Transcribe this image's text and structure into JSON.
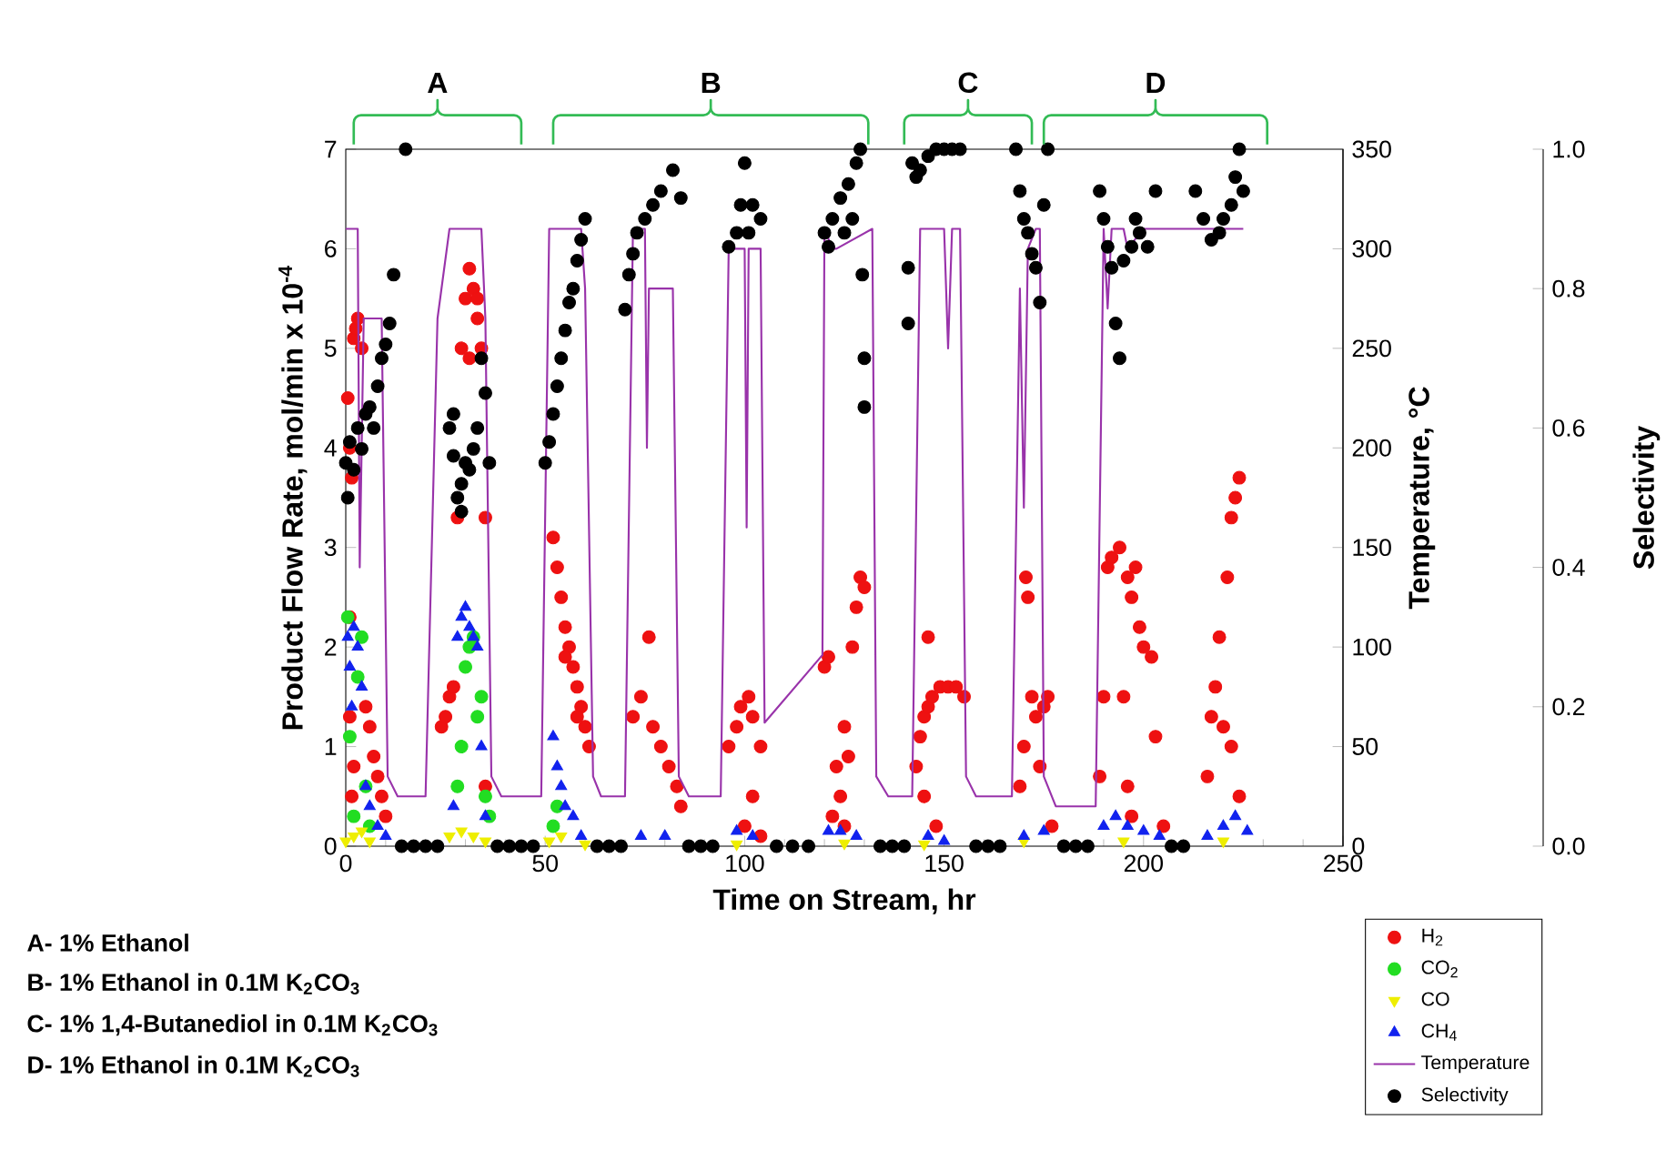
{
  "chart_data": {
    "type": "scatter",
    "xlabel": "Time on Stream, hr",
    "ylabel": "Product Flow Rate, mol/min x 10$^{-4}$",
    "y2label": "Temperature, °C",
    "y3label": "Selectivity",
    "xlim": [
      0,
      250
    ],
    "xticks": [
      0,
      50,
      100,
      150,
      200,
      250
    ],
    "ylim": [
      0,
      7
    ],
    "yticks": [
      0,
      1,
      2,
      3,
      4,
      5,
      6,
      7
    ],
    "y2lim": [
      0,
      350
    ],
    "y2ticks": [
      0,
      50,
      100,
      150,
      200,
      250,
      300,
      350
    ],
    "y3lim": [
      0,
      1
    ],
    "y3ticks": [
      {
        "value": 0,
        "label": "0.0"
      },
      0.2,
      0.4,
      0.6,
      0.8,
      {
        "value": 1,
        "label": "1.0"
      }
    ],
    "legend": "bottom right",
    "grid": false,
    "annotations": [
      "A",
      "B",
      "C",
      "D",
      "A- 1% Ethanol",
      "B- 1% Ethanol in 0.1M K$_{2}$CO$_{3}$",
      "C- 1% 1,4-Butanediol in 0.1M K$_{2}$CO$_{3}$",
      "D- 1% Ethanol in 0.1M K$_{2}$CO$_{3}$"
    ],
    "series": [
      {
        "name": "H$_{2}$",
        "marker": "circle",
        "color": "#ee1111",
        "x": [
          0.5,
          1,
          1.5,
          2,
          2.5,
          3,
          4,
          1,
          1.5,
          5,
          6,
          7,
          8,
          9,
          10,
          1,
          2,
          24,
          25,
          26,
          27,
          28,
          29,
          30,
          31,
          32,
          33,
          34,
          31,
          33,
          35,
          35,
          52,
          53,
          54,
          55,
          56,
          57,
          58,
          59,
          60,
          61,
          55,
          58,
          72,
          74,
          76,
          77,
          79,
          81,
          83,
          84,
          96,
          98,
          99,
          101,
          102,
          104,
          100,
          102,
          104,
          120,
          121,
          122,
          123,
          124,
          125,
          126,
          127,
          128,
          129,
          130,
          125,
          143,
          144,
          145,
          146,
          147,
          149,
          151,
          153,
          155,
          146,
          145,
          148,
          169,
          170,
          170.5,
          171,
          172,
          173,
          175,
          176,
          174,
          177,
          189,
          190,
          191,
          192,
          194,
          196,
          197,
          199,
          200,
          202,
          203,
          195,
          196,
          197,
          205,
          198,
          216,
          217,
          218,
          219,
          220,
          221,
          222,
          223,
          224,
          222,
          224
        ],
        "values": [
          4.5,
          4.0,
          3.7,
          5.1,
          5.2,
          5.3,
          5.0,
          1.3,
          0.5,
          1.4,
          1.2,
          0.9,
          0.7,
          0.5,
          0.3,
          2.3,
          0.8,
          1.2,
          1.3,
          1.5,
          1.6,
          3.3,
          5.0,
          5.5,
          5.8,
          5.6,
          5.3,
          5.0,
          4.9,
          5.5,
          0.6,
          3.3,
          3.1,
          2.8,
          2.5,
          2.2,
          2.0,
          1.8,
          1.6,
          1.4,
          1.2,
          1.0,
          1.9,
          1.3,
          1.3,
          1.5,
          2.1,
          1.2,
          1.0,
          0.8,
          0.6,
          0.4,
          1.0,
          1.2,
          1.4,
          1.5,
          1.3,
          1.0,
          0.2,
          0.5,
          0.1,
          1.8,
          1.9,
          0.3,
          0.8,
          0.5,
          0.2,
          0.9,
          2.0,
          2.4,
          2.7,
          2.6,
          1.2,
          0.8,
          1.1,
          1.3,
          1.4,
          1.5,
          1.6,
          1.6,
          1.6,
          1.5,
          2.1,
          0.5,
          0.2,
          0.6,
          1.0,
          2.7,
          2.5,
          1.5,
          1.3,
          1.4,
          1.5,
          0.8,
          0.2,
          0.7,
          1.5,
          2.8,
          2.9,
          3.0,
          2.7,
          2.5,
          2.2,
          2.0,
          1.9,
          1.1,
          1.5,
          0.6,
          0.3,
          0.2,
          2.8,
          0.7,
          1.3,
          1.6,
          2.1,
          1.2,
          2.7,
          3.3,
          3.5,
          3.7,
          1.0,
          0.5
        ]
      },
      {
        "name": "CO$_{2}$",
        "marker": "circle",
        "color": "#22dd22",
        "x": [
          0.5,
          1,
          2,
          3,
          4,
          5,
          6,
          28,
          29,
          30,
          31,
          32,
          33,
          34,
          35,
          36,
          52,
          53
        ],
        "values": [
          2.3,
          1.1,
          0.3,
          1.7,
          2.1,
          0.6,
          0.2,
          0.6,
          1.0,
          1.8,
          2.0,
          2.1,
          1.3,
          1.5,
          0.5,
          0.3,
          0.2,
          0.4
        ]
      },
      {
        "name": "CO",
        "marker": "triangle-down",
        "color": "#eeee00",
        "x": [
          0,
          2,
          4,
          6,
          26,
          29,
          32,
          35,
          51,
          54,
          60,
          98,
          125,
          145,
          170,
          195,
          220
        ],
        "values": [
          0.05,
          0.1,
          0.15,
          0.05,
          0.1,
          0.15,
          0.1,
          0.05,
          0.05,
          0.1,
          0.02,
          0.02,
          0.03,
          0.02,
          0.05,
          0.05,
          0.05
        ]
      },
      {
        "name": "CH$_{4}$",
        "marker": "triangle",
        "color": "#1122ee",
        "x": [
          0.5,
          1,
          1.5,
          2,
          3,
          4,
          5,
          6,
          8,
          10,
          28,
          29,
          30,
          31,
          32,
          33,
          34,
          35,
          27,
          52,
          53,
          54,
          55,
          57,
          59,
          74,
          80,
          98,
          102,
          121,
          124,
          128,
          140,
          146,
          150,
          160,
          170,
          175,
          190,
          193,
          196,
          200,
          204,
          216,
          220,
          223,
          226
        ],
        "values": [
          2.1,
          1.8,
          1.4,
          2.2,
          2.0,
          1.6,
          0.6,
          0.4,
          0.2,
          0.1,
          2.1,
          2.3,
          2.4,
          2.2,
          2.1,
          2.0,
          1.0,
          0.3,
          0.4,
          1.1,
          0.8,
          0.6,
          0.4,
          0.3,
          0.1,
          0.1,
          0.1,
          0.15,
          0.1,
          0.15,
          0.15,
          0.1,
          null,
          0.1,
          0.05,
          null,
          0.1,
          0.15,
          0.2,
          0.3,
          0.2,
          0.15,
          0.1,
          0.1,
          0.2,
          0.3,
          0.15
        ]
      },
      {
        "name": "Temperature",
        "type": "line",
        "axis": "y2",
        "marker": "none",
        "line_style": "solid",
        "color": "#9933aa",
        "x": [
          0,
          3,
          3.5,
          4.5,
          9,
          10.5,
          13,
          20,
          23,
          26,
          34,
          35,
          36.5,
          39,
          49,
          51,
          59,
          60,
          62,
          64,
          70,
          72,
          75,
          75.5,
          76,
          82,
          83.5,
          86,
          94,
          96,
          100,
          100.5,
          101,
          104,
          105,
          119.5,
          120,
          122,
          123,
          132,
          133,
          136,
          142,
          144,
          150,
          151,
          152,
          154,
          155.5,
          158,
          167,
          169,
          170,
          171,
          173,
          174,
          175,
          178,
          188,
          190,
          191,
          192,
          195,
          196,
          200,
          225
        ],
        "values": [
          310,
          310,
          140,
          265,
          265,
          35,
          25,
          25,
          265,
          310,
          310,
          265,
          35,
          25,
          25,
          310,
          310,
          280,
          35,
          25,
          25,
          310,
          310,
          200,
          280,
          280,
          35,
          25,
          25,
          300,
          300,
          160,
          300,
          300,
          62,
          96,
          310,
          300,
          300,
          310,
          35,
          25,
          25,
          310,
          310,
          250,
          310,
          310,
          35,
          25,
          25,
          280,
          170,
          300,
          310,
          310,
          35,
          20,
          20,
          310,
          270,
          310,
          310,
          300,
          310,
          310
        ]
      },
      {
        "name": "Selectivity",
        "axis": "y3",
        "marker": "circle",
        "color": "#000000",
        "x": [
          0,
          0.5,
          1,
          2,
          3,
          4,
          5,
          6,
          7,
          8,
          9,
          10,
          11,
          12,
          15,
          14,
          17,
          20,
          23,
          26,
          27,
          28,
          29,
          30,
          31,
          32,
          33,
          34,
          35,
          29,
          27,
          36,
          38,
          41,
          44,
          47,
          50,
          51,
          52,
          53,
          54,
          55,
          56,
          57,
          58,
          59,
          60,
          63,
          66,
          69,
          70,
          71,
          72,
          73,
          75,
          77,
          79,
          82,
          84,
          86,
          89,
          92,
          96,
          98,
          99,
          101,
          102,
          104,
          100,
          108,
          112,
          116,
          120,
          121,
          122,
          124,
          125,
          126,
          127,
          128,
          129,
          129.5,
          130,
          130,
          134,
          137,
          140,
          142,
          143,
          144,
          146,
          148,
          150,
          152,
          154,
          141,
          141,
          158,
          161,
          164,
          168,
          169,
          170,
          171,
          172,
          173,
          174,
          175,
          176,
          180,
          183,
          186,
          189,
          190,
          191,
          192,
          193,
          194,
          195,
          197,
          199,
          201,
          203,
          198,
          207,
          210,
          213,
          215,
          217,
          219,
          220,
          222,
          223,
          224,
          225
        ],
        "values": [
          0.55,
          0.5,
          0.58,
          0.54,
          0.6,
          0.57,
          0.62,
          0.63,
          0.6,
          0.66,
          0.7,
          0.72,
          0.75,
          0.82,
          1.0,
          0,
          0,
          0,
          0,
          0.6,
          0.56,
          0.5,
          0.52,
          0.55,
          0.54,
          0.57,
          0.6,
          0.7,
          0.65,
          0.48,
          0.62,
          0.55,
          0,
          0,
          0,
          0,
          0.55,
          0.58,
          0.62,
          0.66,
          0.7,
          0.74,
          0.78,
          0.8,
          0.84,
          0.87,
          0.9,
          0,
          0,
          0,
          0.77,
          0.82,
          0.85,
          0.88,
          0.9,
          0.92,
          0.94,
          0.97,
          0.93,
          0,
          0,
          0,
          0.86,
          0.88,
          0.92,
          0.88,
          0.92,
          0.9,
          0.98,
          0,
          0,
          0,
          0.88,
          0.86,
          0.9,
          0.93,
          0.88,
          0.95,
          0.9,
          0.98,
          1.0,
          0.82,
          0.7,
          0.63,
          0,
          0,
          0,
          0.98,
          0.96,
          0.97,
          0.99,
          1.0,
          1.0,
          1.0,
          1.0,
          0.83,
          0.75,
          0,
          0,
          0,
          1.0,
          0.94,
          0.9,
          0.88,
          0.85,
          0.83,
          0.78,
          0.92,
          1.0,
          0,
          0,
          0,
          0.94,
          0.9,
          0.86,
          0.83,
          0.75,
          0.7,
          0.84,
          0.86,
          0.88,
          0.86,
          0.94,
          0.9,
          0,
          0,
          0.94,
          0.9,
          0.87,
          0.88,
          0.9,
          0.92,
          0.96,
          1.0,
          0.94
        ]
      }
    ]
  }
}
